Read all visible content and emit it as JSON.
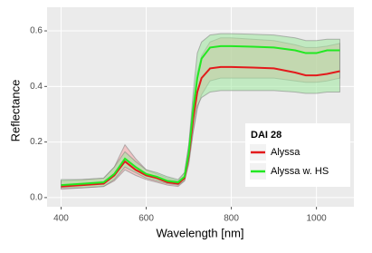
{
  "chart_data": {
    "type": "line",
    "x_label": "Wavelength [nm]",
    "y_label": "Reflectance",
    "x": [
      400,
      450,
      500,
      525,
      550,
      575,
      600,
      625,
      650,
      675,
      690,
      700,
      710,
      720,
      730,
      750,
      775,
      800,
      850,
      900,
      950,
      975,
      1000,
      1025,
      1055
    ],
    "series": [
      {
        "name": "Alyssa",
        "color": "#e31a1c",
        "band_color": "#f4a6a6",
        "values": [
          0.04,
          0.045,
          0.05,
          0.08,
          0.13,
          0.1,
          0.08,
          0.07,
          0.055,
          0.05,
          0.07,
          0.15,
          0.28,
          0.38,
          0.43,
          0.465,
          0.47,
          0.47,
          0.468,
          0.465,
          0.45,
          0.44,
          0.44,
          0.445,
          0.455
        ],
        "lower": [
          0.03,
          0.035,
          0.04,
          0.06,
          0.1,
          0.08,
          0.065,
          0.055,
          0.045,
          0.04,
          0.06,
          0.12,
          0.23,
          0.32,
          0.37,
          0.42,
          0.43,
          0.43,
          0.43,
          0.43,
          0.42,
          0.415,
          0.415,
          0.42,
          0.43
        ],
        "upper": [
          0.06,
          0.065,
          0.07,
          0.11,
          0.19,
          0.14,
          0.1,
          0.085,
          0.07,
          0.06,
          0.09,
          0.19,
          0.34,
          0.45,
          0.51,
          0.56,
          0.575,
          0.575,
          0.57,
          0.565,
          0.55,
          0.54,
          0.54,
          0.545,
          0.555
        ]
      },
      {
        "name": "Alyssa w. HS",
        "color": "#22e822",
        "band_color": "#9ee89e",
        "values": [
          0.045,
          0.05,
          0.055,
          0.085,
          0.14,
          0.11,
          0.085,
          0.075,
          0.06,
          0.055,
          0.075,
          0.16,
          0.31,
          0.43,
          0.5,
          0.54,
          0.545,
          0.545,
          0.543,
          0.54,
          0.53,
          0.52,
          0.52,
          0.53,
          0.53
        ],
        "lower": [
          0.035,
          0.035,
          0.04,
          0.065,
          0.11,
          0.09,
          0.07,
          0.06,
          0.05,
          0.045,
          0.06,
          0.13,
          0.24,
          0.33,
          0.36,
          0.38,
          0.385,
          0.385,
          0.385,
          0.385,
          0.38,
          0.375,
          0.375,
          0.38,
          0.38
        ],
        "upper": [
          0.065,
          0.065,
          0.07,
          0.11,
          0.165,
          0.13,
          0.1,
          0.09,
          0.075,
          0.065,
          0.09,
          0.19,
          0.37,
          0.52,
          0.56,
          0.585,
          0.59,
          0.59,
          0.588,
          0.585,
          0.575,
          0.565,
          0.565,
          0.57,
          0.57
        ]
      }
    ],
    "xlim": [
      367,
      1088
    ],
    "xticks": [
      400,
      600,
      800,
      1000
    ],
    "ylim": [
      -0.033,
      0.685
    ],
    "yticks": [
      {
        "value": 0,
        "label": "0.0"
      },
      {
        "value": 0.2,
        "label": "0.2"
      },
      {
        "value": 0.4,
        "label": "0.4"
      },
      {
        "value": 0.6,
        "label": "0.6"
      }
    ],
    "grid": true,
    "legend_title": "DAI 28",
    "legend_position": "bottom-right"
  }
}
